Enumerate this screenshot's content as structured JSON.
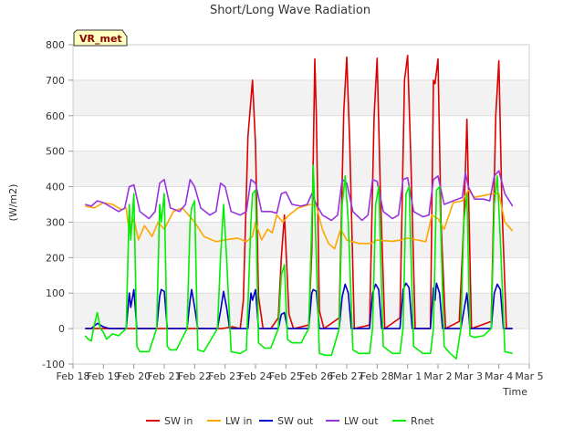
{
  "chart_data": {
    "type": "line",
    "title": "Short/Long Wave Radiation",
    "xlabel": "Time",
    "ylabel": "(W/m2)",
    "badge": "VR_met",
    "xlim": [
      0,
      15
    ],
    "ylim": [
      -100,
      800
    ],
    "x_ticks": [
      {
        "v": 0,
        "label": "Feb 18"
      },
      {
        "v": 1,
        "label": "Feb 19"
      },
      {
        "v": 2,
        "label": "Feb 20"
      },
      {
        "v": 3,
        "label": "Feb 21"
      },
      {
        "v": 4,
        "label": "Feb 22"
      },
      {
        "v": 5,
        "label": "Feb 23"
      },
      {
        "v": 6,
        "label": "Feb 24"
      },
      {
        "v": 7,
        "label": "Feb 25"
      },
      {
        "v": 8,
        "label": "Feb 26"
      },
      {
        "v": 9,
        "label": "Feb 27"
      },
      {
        "v": 10,
        "label": "Feb 28"
      },
      {
        "v": 11,
        "label": "Mar 1"
      },
      {
        "v": 12,
        "label": "Mar 2"
      },
      {
        "v": 13,
        "label": "Mar 3"
      },
      {
        "v": 14,
        "label": "Mar 4"
      },
      {
        "v": 15,
        "label": "Mar 5"
      }
    ],
    "y_ticks": [
      -100,
      0,
      100,
      200,
      300,
      400,
      500,
      600,
      700,
      800
    ],
    "grid": true,
    "legend_position": "bottom",
    "series": [
      {
        "name": "SW in",
        "color": "#dd0000",
        "x": [
          0.4,
          4.9,
          5.25,
          5.5,
          5.6,
          5.75,
          5.9,
          6.0,
          6.1,
          6.25,
          6.5,
          6.75,
          6.85,
          6.95,
          7.1,
          7.25,
          7.75,
          7.85,
          7.95,
          8.0,
          8.1,
          8.25,
          8.75,
          8.9,
          9.0,
          9.1,
          9.25,
          9.75,
          9.9,
          10.0,
          10.1,
          10.25,
          10.75,
          10.9,
          11.0,
          11.1,
          11.25,
          11.75,
          11.85,
          11.9,
          12.0,
          12.1,
          12.25,
          12.7,
          12.85,
          12.95,
          13.1,
          13.75,
          13.9,
          14.0,
          14.1,
          14.25,
          14.45
        ],
        "y": [
          0,
          0,
          5,
          0,
          80,
          540,
          700,
          520,
          90,
          0,
          0,
          30,
          200,
          320,
          40,
          0,
          10,
          220,
          760,
          600,
          50,
          0,
          30,
          610,
          765,
          520,
          0,
          10,
          600,
          762,
          400,
          0,
          30,
          700,
          770,
          500,
          0,
          0,
          700,
          690,
          760,
          300,
          0,
          20,
          300,
          590,
          0,
          20,
          600,
          755,
          350,
          0,
          0
        ]
      },
      {
        "name": "LW in",
        "color": "#ffa500",
        "x": [
          0.4,
          0.7,
          1.0,
          1.3,
          1.6,
          1.75,
          1.85,
          2.0,
          2.15,
          2.35,
          2.6,
          2.8,
          3.0,
          3.3,
          3.6,
          3.8,
          4.0,
          4.3,
          4.7,
          5.0,
          5.4,
          5.7,
          5.9,
          6.0,
          6.2,
          6.4,
          6.55,
          6.7,
          6.9,
          7.1,
          7.4,
          7.8,
          8.0,
          8.2,
          8.4,
          8.6,
          8.8,
          9.0,
          9.2,
          9.4,
          9.6,
          9.8,
          10.0,
          10.2,
          10.5,
          10.8,
          11.0,
          11.3,
          11.6,
          11.8,
          12.0,
          12.2,
          12.5,
          12.8,
          13.0,
          13.2,
          13.5,
          13.8,
          14.0,
          14.2,
          14.45
        ],
        "y": [
          345,
          340,
          355,
          350,
          335,
          340,
          270,
          310,
          250,
          290,
          260,
          300,
          280,
          330,
          340,
          320,
          300,
          260,
          245,
          250,
          255,
          245,
          260,
          300,
          250,
          280,
          270,
          320,
          300,
          320,
          340,
          350,
          345,
          280,
          240,
          225,
          280,
          250,
          245,
          240,
          240,
          240,
          250,
          248,
          246,
          250,
          255,
          250,
          245,
          320,
          310,
          280,
          355,
          360,
          390,
          370,
          375,
          380,
          380,
          300,
          275
        ]
      },
      {
        "name": "SW out",
        "color": "#0000cc",
        "x": [
          0.4,
          0.6,
          0.8,
          1.0,
          1.2,
          1.75,
          1.85,
          1.9,
          2.0,
          2.1,
          2.75,
          2.85,
          2.9,
          3.0,
          3.1,
          3.75,
          3.85,
          3.9,
          4.0,
          4.1,
          4.75,
          4.85,
          4.95,
          5.05,
          5.15,
          5.75,
          5.85,
          5.9,
          6.0,
          6.1,
          6.75,
          6.85,
          6.95,
          7.05,
          7.75,
          7.85,
          7.9,
          8.0,
          8.1,
          8.75,
          8.85,
          8.95,
          9.05,
          9.15,
          9.75,
          9.85,
          9.95,
          10.05,
          10.15,
          10.75,
          10.85,
          10.95,
          11.05,
          11.15,
          11.75,
          11.85,
          11.9,
          11.95,
          12.05,
          12.15,
          12.75,
          12.85,
          12.95,
          13.05,
          13.75,
          13.85,
          13.95,
          14.05,
          14.15,
          14.45
        ],
        "y": [
          0,
          0,
          15,
          5,
          0,
          0,
          100,
          60,
          110,
          0,
          0,
          90,
          110,
          105,
          0,
          0,
          80,
          110,
          60,
          0,
          0,
          50,
          105,
          60,
          0,
          0,
          100,
          80,
          110,
          0,
          0,
          40,
          45,
          0,
          0,
          100,
          110,
          105,
          0,
          0,
          90,
          125,
          100,
          0,
          0,
          100,
          125,
          110,
          0,
          0,
          110,
          128,
          115,
          0,
          0,
          115,
          80,
          128,
          100,
          0,
          0,
          50,
          100,
          0,
          0,
          100,
          125,
          110,
          0,
          0
        ]
      },
      {
        "name": "LW out",
        "color": "#9933dd",
        "x": [
          0.4,
          0.6,
          0.8,
          1.0,
          1.2,
          1.5,
          1.7,
          1.85,
          2.0,
          2.2,
          2.5,
          2.7,
          2.85,
          3.0,
          3.2,
          3.5,
          3.7,
          3.85,
          4.0,
          4.2,
          4.5,
          4.7,
          4.85,
          5.0,
          5.2,
          5.5,
          5.7,
          5.85,
          6.0,
          6.2,
          6.5,
          6.7,
          6.85,
          7.0,
          7.2,
          7.5,
          7.7,
          7.85,
          8.0,
          8.2,
          8.5,
          8.7,
          8.85,
          9.0,
          9.2,
          9.5,
          9.7,
          9.85,
          10.0,
          10.2,
          10.5,
          10.7,
          10.85,
          11.0,
          11.2,
          11.5,
          11.7,
          11.85,
          12.0,
          12.2,
          12.5,
          12.8,
          12.9,
          13.0,
          13.2,
          13.5,
          13.7,
          13.85,
          14.0,
          14.2,
          14.45
        ],
        "y": [
          350,
          345,
          360,
          355,
          345,
          330,
          340,
          400,
          405,
          330,
          310,
          330,
          410,
          420,
          340,
          330,
          350,
          420,
          400,
          340,
          320,
          330,
          410,
          400,
          330,
          320,
          330,
          420,
          410,
          330,
          330,
          325,
          380,
          385,
          350,
          345,
          350,
          380,
          350,
          320,
          305,
          320,
          420,
          410,
          330,
          305,
          320,
          420,
          415,
          330,
          310,
          320,
          420,
          425,
          330,
          315,
          320,
          420,
          430,
          350,
          360,
          370,
          440,
          400,
          365,
          365,
          360,
          430,
          445,
          380,
          345
        ]
      },
      {
        "name": "Rnet",
        "color": "#00ee00",
        "x": [
          0.4,
          0.5,
          0.6,
          0.7,
          0.8,
          0.9,
          1.0,
          1.1,
          1.3,
          1.5,
          1.75,
          1.85,
          1.9,
          2.0,
          2.1,
          2.2,
          2.5,
          2.75,
          2.85,
          2.9,
          3.0,
          3.1,
          3.2,
          3.4,
          3.75,
          3.85,
          3.9,
          4.0,
          4.1,
          4.3,
          4.75,
          4.85,
          4.95,
          5.05,
          5.2,
          5.5,
          5.7,
          5.85,
          5.9,
          6.0,
          6.1,
          6.3,
          6.5,
          6.75,
          6.85,
          6.95,
          7.05,
          7.2,
          7.5,
          7.75,
          7.85,
          7.9,
          8.0,
          8.1,
          8.3,
          8.5,
          8.75,
          8.85,
          8.95,
          9.05,
          9.2,
          9.4,
          9.75,
          9.85,
          9.95,
          10.05,
          10.2,
          10.5,
          10.75,
          10.85,
          10.95,
          11.05,
          11.2,
          11.5,
          11.75,
          11.85,
          11.95,
          12.05,
          12.2,
          12.4,
          12.6,
          12.75,
          12.85,
          12.95,
          13.05,
          13.2,
          13.5,
          13.75,
          13.85,
          13.95,
          14.05,
          14.2,
          14.45
        ],
        "y": [
          -20,
          -30,
          -35,
          10,
          45,
          0,
          -10,
          -30,
          -15,
          -20,
          0,
          350,
          250,
          380,
          -50,
          -65,
          -65,
          0,
          350,
          300,
          380,
          -50,
          -60,
          -60,
          0,
          300,
          340,
          360,
          -60,
          -65,
          0,
          200,
          350,
          200,
          -65,
          -70,
          -60,
          300,
          380,
          390,
          -40,
          -55,
          -55,
          0,
          150,
          180,
          -30,
          -40,
          -40,
          0,
          300,
          460,
          200,
          -70,
          -75,
          -75,
          0,
          350,
          430,
          300,
          -60,
          -70,
          -70,
          0,
          350,
          400,
          -50,
          -70,
          -70,
          0,
          380,
          400,
          -50,
          -70,
          -70,
          0,
          390,
          400,
          -50,
          -70,
          -85,
          0,
          300,
          380,
          -20,
          -25,
          -20,
          0,
          350,
          430,
          250,
          -65,
          -70
        ]
      }
    ]
  }
}
